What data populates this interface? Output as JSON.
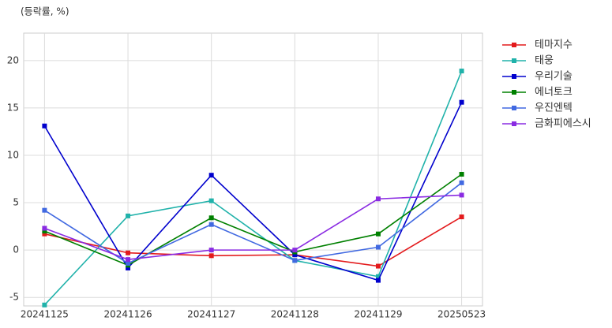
{
  "chart_data": {
    "type": "line",
    "subtitle": "(등락률, %)",
    "categories": [
      "20241125",
      "20241126",
      "20241127",
      "20241128",
      "20241129",
      "20250523"
    ],
    "series": [
      {
        "name": "테마지수",
        "color": "#e31a1c",
        "values": [
          1.7,
          -0.3,
          -0.6,
          -0.5,
          -1.7,
          3.5
        ]
      },
      {
        "name": "태웅",
        "color": "#20b2aa",
        "values": [
          -5.8,
          3.6,
          5.2,
          -1.1,
          -2.8,
          18.9
        ]
      },
      {
        "name": "우리기술",
        "color": "#0000cd",
        "values": [
          13.1,
          -1.9,
          7.9,
          -0.5,
          -3.2,
          15.6
        ]
      },
      {
        "name": "에너토크",
        "color": "#008000",
        "values": [
          2.0,
          -1.6,
          3.4,
          -0.2,
          1.7,
          8.0
        ]
      },
      {
        "name": "우진엔텍",
        "color": "#4169e1",
        "values": [
          4.2,
          -1.4,
          2.7,
          -1.1,
          0.3,
          7.1
        ]
      },
      {
        "name": "금화피에스시",
        "color": "#8a2be2",
        "values": [
          2.3,
          -1.0,
          0.0,
          0.0,
          5.4,
          5.8
        ]
      }
    ],
    "ylim": [
      -5.9,
      22.9
    ],
    "yticks": [
      -5,
      0,
      5,
      10,
      15,
      20
    ],
    "grid": true,
    "legend": "outside-right"
  }
}
